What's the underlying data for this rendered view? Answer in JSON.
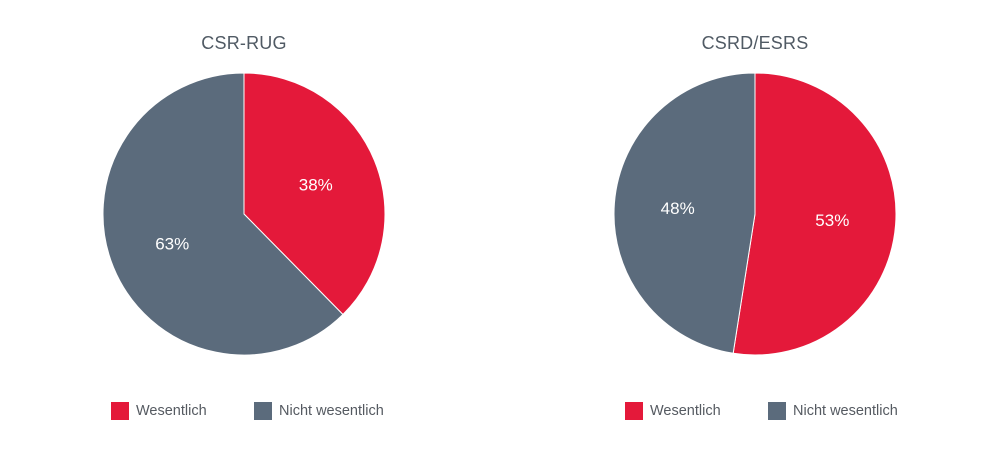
{
  "colors": {
    "wesentlich": "#e4193a",
    "nicht_wesentlich": "#5b6b7c",
    "slice_label": "#ffffff"
  },
  "chart_data": [
    {
      "type": "pie",
      "title": "CSR-RUG",
      "categories": [
        "Wesentlich",
        "Nicht wesentlich"
      ],
      "values": [
        38,
        63
      ],
      "labels": [
        "38%",
        "63%"
      ],
      "legend": {
        "position": "bottom",
        "entries": [
          "Wesentlich",
          "Nicht wesentlich"
        ]
      }
    },
    {
      "type": "pie",
      "title": "CSRD/ESRS",
      "categories": [
        "Wesentlich",
        "Nicht wesentlich"
      ],
      "values": [
        53,
        48
      ],
      "labels": [
        "53%",
        "48%"
      ],
      "legend": {
        "position": "bottom",
        "entries": [
          "Wesentlich",
          "Nicht wesentlich"
        ]
      }
    }
  ]
}
